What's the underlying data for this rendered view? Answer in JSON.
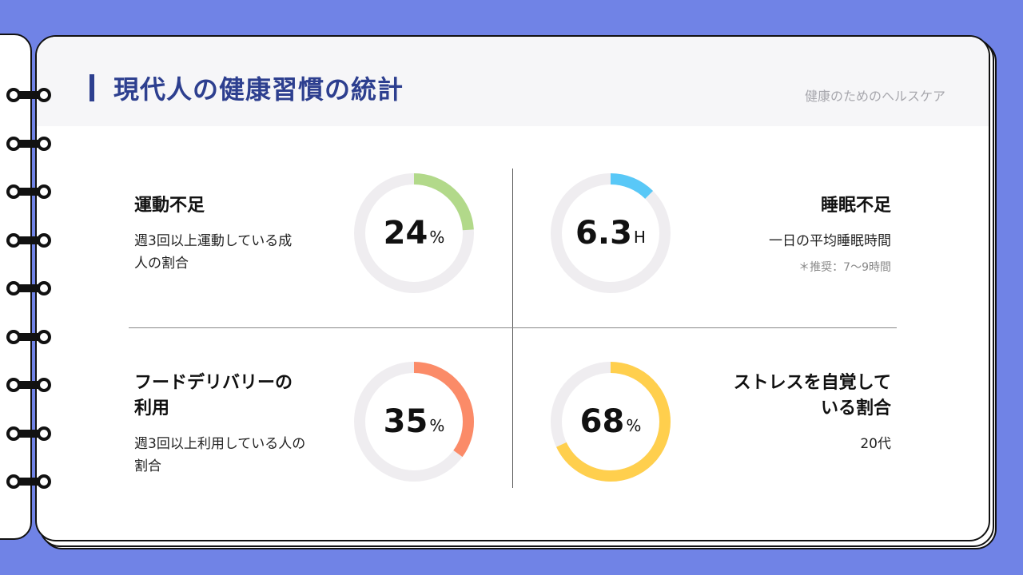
{
  "header": {
    "title": "現代人の健康習慣の統計",
    "subtitle": "健康のためのヘルスケア"
  },
  "stats": [
    {
      "title": "運動不足",
      "description": "週3回以上運動している成人の割合",
      "value": "24",
      "unit": "%",
      "fraction": 0.24,
      "color": "#b2d98a"
    },
    {
      "title": "睡眠不足",
      "description": "一日の平均睡眠時間",
      "note": "＊推奨：7〜9時間",
      "value": "6.3",
      "unit": "H",
      "fraction": 0.125,
      "color": "#59c8f7"
    },
    {
      "title": "フードデリバリーの利用",
      "description": "週3回以上利用している人の割合",
      "value": "35",
      "unit": "%",
      "fraction": 0.35,
      "color": "#fb8b68"
    },
    {
      "title": "ストレスを自覚している割合",
      "description": "20代",
      "value": "68",
      "unit": "%",
      "fraction": 0.68,
      "color": "#ffcf4d"
    }
  ],
  "colors": {
    "background": "#7083e6",
    "title": "#2d3f8f",
    "ring_track": "#efedf0"
  }
}
